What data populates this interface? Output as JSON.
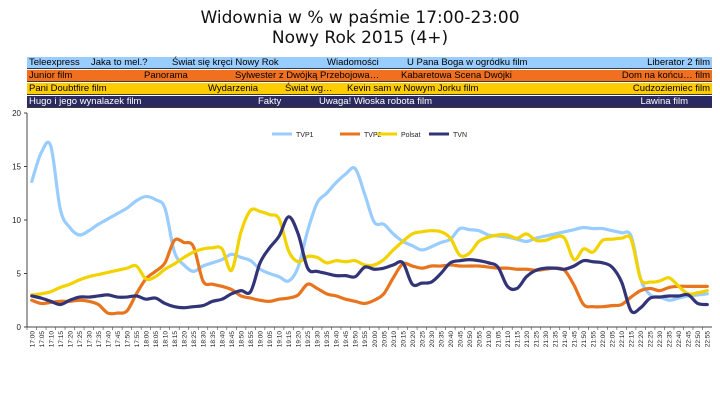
{
  "title_line1": "Widownia w % w paśmie 17:00-23:00",
  "title_line2": "Nowy Rok 2015 (4+)",
  "bands": [
    {
      "name": "TVP1",
      "bg": "#99ccff",
      "fg": "#000000",
      "programs": [
        "Teleexpress",
        "Jaka to mel.?",
        "Świat się kręci Nowy Rok",
        "Wiadomości",
        "U Pana Boga w ogródku film",
        "Liberator 2 film"
      ]
    },
    {
      "name": "TVP2",
      "bg": "#f07020",
      "fg": "#000000",
      "programs": [
        "Junior film",
        "Panorama",
        "Sylwester z Dwójką Przebojowa…",
        "Kabaretowa Scena Dwójki",
        "Dom na końcu… film"
      ]
    },
    {
      "name": "Polsat",
      "bg": "#ffcc00",
      "fg": "#000000",
      "programs": [
        "Pani Doubtfire film",
        "Wydarzenia",
        "Świat wg…",
        "Kevin sam w Nowym Jorku film",
        "Cudzoziemiec film"
      ]
    },
    {
      "name": "TVN",
      "bg": "#2a2a60",
      "fg": "#ffffff",
      "programs": [
        "Hugo i jego wynalazek film",
        "Fakty",
        "Uwaga! Włoska robota film",
        "Lawina film"
      ]
    }
  ],
  "chart_data": {
    "type": "line",
    "x": [
      "17:00",
      "17:05",
      "17:10",
      "17:15",
      "17:20",
      "17:25",
      "17:30",
      "17:35",
      "17:40",
      "17:45",
      "17:50",
      "17:55",
      "18:00",
      "18:05",
      "18:10",
      "18:15",
      "18:20",
      "18:25",
      "18:30",
      "18:35",
      "18:40",
      "18:45",
      "18:50",
      "18:55",
      "19:00",
      "19:05",
      "19:10",
      "19:15",
      "19:20",
      "19:25",
      "19:30",
      "19:35",
      "19:40",
      "19:45",
      "19:50",
      "19:55",
      "20:00",
      "20:05",
      "20:10",
      "20:15",
      "20:20",
      "20:25",
      "20:30",
      "20:35",
      "20:40",
      "20:45",
      "20:50",
      "20:55",
      "21:00",
      "21:05",
      "21:10",
      "21:15",
      "21:20",
      "21:25",
      "21:30",
      "21:35",
      "21:40",
      "21:45",
      "21:50",
      "21:55",
      "22:00",
      "22:05",
      "22:10",
      "22:15",
      "22:20",
      "22:25",
      "22:30",
      "22:35",
      "22:40",
      "22:45",
      "22:50",
      "22:55"
    ],
    "ylim": [
      0,
      20
    ],
    "yticks": [
      0,
      5,
      10,
      15,
      20
    ],
    "legend_position": "top-center",
    "series": [
      {
        "name": "TVP1",
        "color": "#99ccff",
        "values": [
          13.6,
          16.3,
          16.9,
          11.0,
          9.3,
          8.6,
          9.0,
          9.6,
          10.1,
          10.6,
          11.1,
          11.8,
          12.2,
          11.9,
          11.1,
          7.0,
          5.8,
          5.2,
          5.7,
          6.0,
          6.3,
          6.8,
          6.5,
          6.2,
          5.4,
          5.0,
          4.7,
          4.3,
          5.6,
          9.0,
          11.6,
          12.5,
          13.5,
          14.3,
          14.8,
          12.4,
          9.8,
          9.6,
          8.7,
          8.0,
          7.6,
          7.2,
          7.5,
          7.9,
          8.2,
          9.2,
          9.1,
          9.0,
          8.6,
          8.5,
          8.4,
          8.2,
          8.0,
          8.3,
          8.5,
          8.7,
          8.9,
          9.1,
          9.3,
          9.2,
          9.2,
          9.0,
          8.8,
          8.5,
          4.5,
          3.0,
          2.8,
          2.5,
          2.7,
          2.9,
          3.0,
          3.1
        ]
      },
      {
        "name": "TVP2",
        "color": "#e8741e",
        "values": [
          2.5,
          2.2,
          2.3,
          2.4,
          2.4,
          2.5,
          2.4,
          2.1,
          1.3,
          1.3,
          1.5,
          3.1,
          4.5,
          5.2,
          6.0,
          8.1,
          7.9,
          7.5,
          4.3,
          4.0,
          3.8,
          3.5,
          2.9,
          2.7,
          2.5,
          2.4,
          2.6,
          2.7,
          3.0,
          4.0,
          3.6,
          3.1,
          2.9,
          2.6,
          2.4,
          2.2,
          2.5,
          3.1,
          4.6,
          5.9,
          5.7,
          5.5,
          5.7,
          5.7,
          5.8,
          5.7,
          5.7,
          5.7,
          5.6,
          5.5,
          5.5,
          5.4,
          5.4,
          5.3,
          5.4,
          5.5,
          5.3,
          3.9,
          2.1,
          1.9,
          1.9,
          2.0,
          2.1,
          2.8,
          3.4,
          3.6,
          3.4,
          3.7,
          3.8,
          3.8,
          3.8,
          3.8
        ]
      },
      {
        "name": "Polsat",
        "color": "#f2d300",
        "values": [
          3.0,
          3.1,
          3.3,
          3.7,
          4.0,
          4.4,
          4.7,
          4.9,
          5.1,
          5.3,
          5.5,
          5.7,
          4.5,
          4.7,
          5.4,
          5.9,
          6.5,
          7.0,
          7.3,
          7.4,
          7.3,
          5.3,
          8.9,
          10.9,
          10.8,
          10.5,
          10.1,
          7.1,
          6.1,
          6.6,
          6.5,
          6.0,
          6.2,
          6.1,
          6.2,
          5.8,
          5.8,
          6.3,
          7.2,
          8.0,
          8.7,
          8.9,
          9.0,
          8.9,
          8.3,
          6.7,
          6.9,
          8.0,
          8.4,
          8.6,
          8.6,
          8.3,
          8.7,
          8.1,
          8.1,
          8.4,
          8.3,
          6.3,
          7.3,
          7.0,
          8.1,
          8.2,
          8.3,
          8.2,
          4.5,
          4.2,
          4.3,
          4.6,
          3.8,
          3.1,
          3.2,
          3.4
        ]
      },
      {
        "name": "TVN",
        "color": "#323478",
        "values": [
          2.9,
          2.7,
          2.4,
          2.1,
          2.5,
          2.8,
          2.8,
          2.9,
          3.0,
          2.8,
          2.8,
          2.9,
          2.6,
          2.7,
          2.2,
          1.9,
          1.8,
          1.9,
          2.0,
          2.4,
          2.6,
          3.1,
          3.4,
          3.3,
          6.0,
          7.4,
          8.5,
          10.3,
          8.7,
          5.5,
          5.2,
          5.0,
          4.8,
          4.8,
          4.7,
          5.6,
          5.4,
          5.5,
          5.8,
          6.0,
          4.0,
          4.1,
          4.2,
          5.0,
          6.0,
          6.2,
          6.3,
          6.2,
          6.0,
          5.6,
          3.8,
          3.6,
          4.7,
          5.3,
          5.5,
          5.5,
          5.4,
          5.7,
          6.2,
          6.1,
          6.0,
          5.6,
          4.2,
          1.5,
          1.8,
          2.7,
          2.8,
          2.9,
          2.9,
          3.0,
          2.2,
          2.1
        ]
      }
    ]
  }
}
